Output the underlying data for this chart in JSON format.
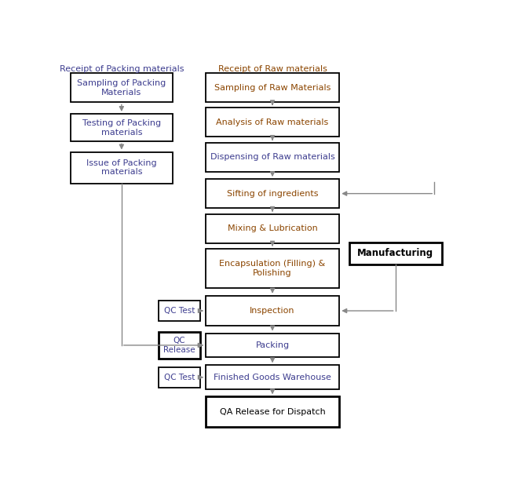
{
  "fig_width": 6.56,
  "fig_height": 6.18,
  "bg_color": "#ffffff",
  "left_header": "Receipt of Packing materials",
  "right_header": "Receipt of Raw materials",
  "left_header_color": "#3d3d8f",
  "right_header_color": "#8b4500",
  "left_box_labels": [
    "Sampling of Packing\nMaterials",
    "Testing of Packing\nmaterials",
    "Issue of Packing\nmaterials"
  ],
  "left_box_colors": [
    "#3d3d8f",
    "#3d3d8f",
    "#3d3d8f"
  ],
  "center_box_labels": [
    "Sampling of Raw Materials",
    "Analysis of Raw materials",
    "Dispensing of Raw materials",
    "Sifting of ingredients",
    "Mixing & Lubrication",
    "Encapsulation (Filling) &\nPolishing",
    "Inspection",
    "Packing",
    "Finished Goods Warehouse",
    "QA Release for Dispatch"
  ],
  "center_box_colors": [
    "#8b4500",
    "#8b4500",
    "#3d3d8f",
    "#8b4500",
    "#8b4500",
    "#8b4500",
    "#8b4500",
    "#3d3d8f",
    "#3d3d8f",
    "#000000"
  ],
  "center_box_bold": [
    false,
    false,
    false,
    false,
    false,
    false,
    false,
    false,
    false,
    false
  ],
  "center_box_thick": [
    false,
    false,
    false,
    false,
    false,
    false,
    false,
    false,
    false,
    true
  ],
  "qc_labels": [
    "QC Test",
    "QC\nRelease",
    "QC Test"
  ],
  "qc_colors": [
    "#3d3d8f",
    "#3d3d8f",
    "#3d3d8f"
  ],
  "qc_thick": [
    false,
    true,
    false
  ],
  "manufacturing_label": "Manufacturing",
  "arrow_color": "#888888",
  "line_color": "#888888"
}
